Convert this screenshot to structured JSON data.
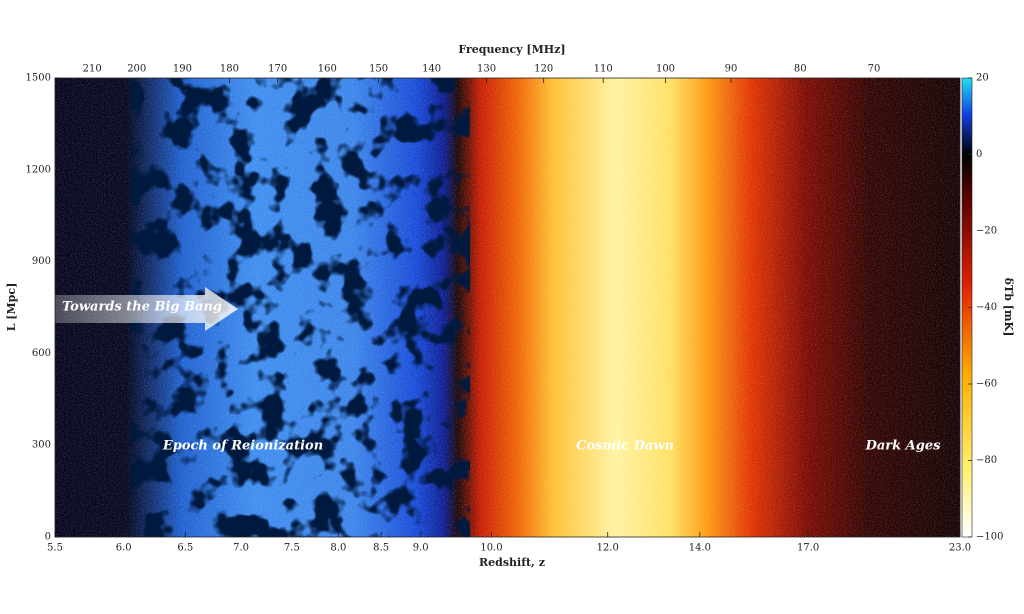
{
  "chart_data": {
    "type": "heatmap",
    "xlabel": "Redshift, z",
    "x2label": "Frequency [MHz]",
    "ylabel": "L [Mpc]",
    "xlim": [
      5.5,
      23.0
    ],
    "xticks": [
      5.5,
      {
        "value": 6,
        "label": "6.0"
      },
      6.5,
      {
        "value": 7,
        "label": "7.0"
      },
      7.5,
      {
        "value": 8,
        "label": "8.0"
      },
      8.5,
      {
        "value": 9,
        "label": "9.0"
      },
      {
        "value": 10,
        "label": "10.0"
      },
      {
        "value": 12,
        "label": "12.0"
      },
      {
        "value": 14,
        "label": "14.0"
      },
      {
        "value": 17,
        "label": "17.0"
      },
      {
        "value": 23,
        "label": "23.0"
      }
    ],
    "x2ticks": [
      210,
      200,
      190,
      180,
      170,
      160,
      150,
      140,
      130,
      120,
      110,
      100,
      90,
      80,
      70
    ],
    "ylim": [
      0,
      1500
    ],
    "yticks": [
      0,
      300,
      600,
      900,
      1200,
      1500
    ],
    "colorbar": {
      "label": "δTb [mK]",
      "lim": [
        -100,
        20
      ],
      "ticks": [
        20,
        0,
        {
          "value": -20,
          "label": "−20"
        },
        {
          "value": -40,
          "label": "−40"
        },
        {
          "value": -60,
          "label": "−60"
        },
        {
          "value": -80,
          "label": "−80"
        },
        {
          "value": -100,
          "label": "−100"
        }
      ]
    },
    "annotations": [
      "Towards the Big Bang",
      "Epoch of Reionization",
      "Cosmic Dawn",
      "Dark Ages"
    ]
  }
}
